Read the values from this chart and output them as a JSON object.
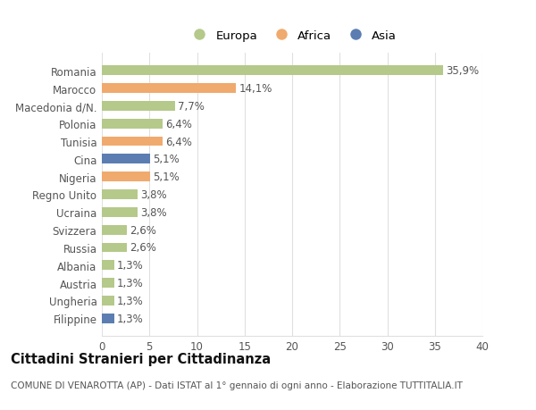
{
  "categories": [
    "Romania",
    "Marocco",
    "Macedonia d/N.",
    "Polonia",
    "Tunisia",
    "Cina",
    "Nigeria",
    "Regno Unito",
    "Ucraina",
    "Svizzera",
    "Russia",
    "Albania",
    "Austria",
    "Ungheria",
    "Filippine"
  ],
  "values": [
    35.9,
    14.1,
    7.7,
    6.4,
    6.4,
    5.1,
    5.1,
    3.8,
    3.8,
    2.6,
    2.6,
    1.3,
    1.3,
    1.3,
    1.3
  ],
  "labels": [
    "35,9%",
    "14,1%",
    "7,7%",
    "6,4%",
    "6,4%",
    "5,1%",
    "5,1%",
    "3,8%",
    "3,8%",
    "2,6%",
    "2,6%",
    "1,3%",
    "1,3%",
    "1,3%",
    "1,3%"
  ],
  "continents": [
    "Europa",
    "Africa",
    "Europa",
    "Europa",
    "Africa",
    "Asia",
    "Africa",
    "Europa",
    "Europa",
    "Europa",
    "Europa",
    "Europa",
    "Europa",
    "Europa",
    "Asia"
  ],
  "continent_colors": {
    "Europa": "#b5c98a",
    "Africa": "#f0aa6e",
    "Asia": "#5b7db1"
  },
  "background_color": "#ffffff",
  "grid_color": "#e0e0e0",
  "title": "Cittadini Stranieri per Cittadinanza",
  "subtitle": "COMUNE DI VENAROTTA (AP) - Dati ISTAT al 1° gennaio di ogni anno - Elaborazione TUTTITALIA.IT",
  "xlim": [
    0,
    40
  ],
  "xticks": [
    0,
    5,
    10,
    15,
    20,
    25,
    30,
    35,
    40
  ],
  "bar_height": 0.55,
  "label_fontsize": 8.5,
  "tick_fontsize": 8.5,
  "title_fontsize": 10.5,
  "subtitle_fontsize": 7.5
}
